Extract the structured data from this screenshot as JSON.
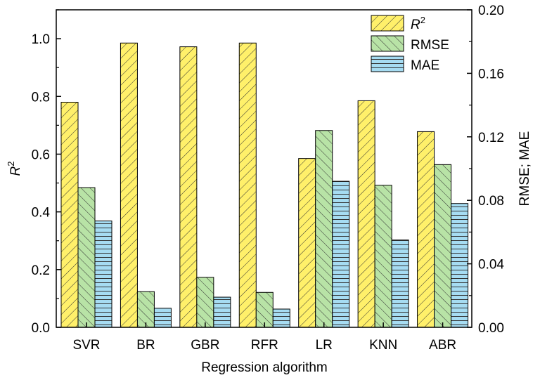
{
  "chart_data": {
    "type": "bar",
    "xlabel": "Regression algorithm",
    "ylabel_left_main": "R",
    "ylabel_left_sup": "2",
    "ylabel_right": "RMSE; MAE",
    "categories": [
      "SVR",
      "BR",
      "GBR",
      "RFR",
      "LR",
      "KNN",
      "ABR"
    ],
    "left_axis": {
      "min": 0,
      "max": 1.1,
      "ticks": [
        "0.0",
        "0.2",
        "0.4",
        "0.6",
        "0.8",
        "1.0"
      ]
    },
    "right_axis": {
      "min": 0,
      "max": 0.2,
      "ticks": [
        "0.00",
        "0.04",
        "0.08",
        "0.12",
        "0.16",
        "0.20"
      ]
    },
    "series": [
      {
        "name": "R",
        "name_sup": "2",
        "axis": "left",
        "color": "#fff06a",
        "pattern": "hatch-forward",
        "values": [
          0.78,
          0.985,
          0.972,
          0.985,
          0.585,
          0.785,
          0.678
        ]
      },
      {
        "name": "RMSE",
        "axis": "right",
        "color": "#b8e3a6",
        "pattern": "hatch-back",
        "values": [
          0.088,
          0.0225,
          0.0315,
          0.022,
          0.124,
          0.0895,
          0.1025
        ]
      },
      {
        "name": "MAE",
        "axis": "right",
        "color": "#a6dcf2",
        "pattern": "horizontal",
        "values": [
          0.067,
          0.012,
          0.019,
          0.0115,
          0.092,
          0.055,
          0.078
        ]
      }
    ],
    "legend_position": "top-right",
    "grid": false
  }
}
